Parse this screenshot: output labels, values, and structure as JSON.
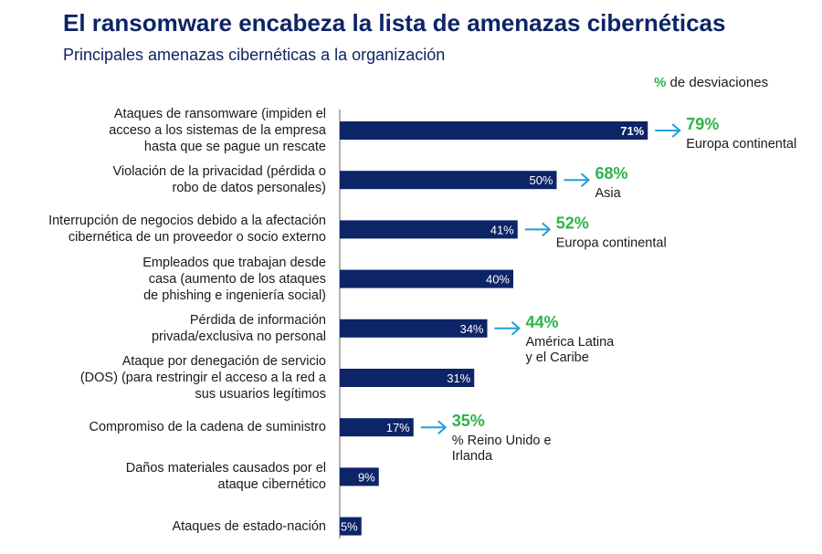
{
  "header": {
    "title": "El ransomware encabeza la lista de amenazas cibernéticas",
    "subtitle": "Principales amenazas cibernéticas a la organización"
  },
  "legend": {
    "symbol": "%",
    "label": " de desviaciones"
  },
  "colors": {
    "bar": "#0d2466",
    "highlight": "#2db34a",
    "arrow": "#1fa0d8"
  },
  "chart_data": {
    "type": "bar",
    "orientation": "horizontal",
    "xlim": [
      0,
      80
    ],
    "grid": false,
    "title": "El ransomware encabeza la lista de amenazas cibernéticas",
    "subtitle": "Principales amenazas cibernéticas a la organización",
    "categories": [
      "Ataques de ransomware (impiden el acceso a los sistemas de la empresa hasta que se pague un rescate",
      "Violación de la privacidad (pérdida o robo de datos personales)",
      "Interrupción de negocios debido a la afectación cibernética de un proveedor o socio externo",
      "Empleados que trabajan desde casa (aumento de los ataques de phishing e ingeniería social)",
      "Pérdida de información privada/exclusiva no personal",
      "Ataque por denegación de servicio (DOS) (para restringir el acceso a la red a sus usuarios legítimos",
      "Compromiso de la cadena de suministro",
      "Daños materiales causados por el ataque cibernético",
      "Ataques de estado-nación"
    ],
    "category_lines": [
      [
        "Ataques de ransomware (impiden el",
        "acceso a los sistemas de la empresa",
        "hasta que se pague un rescate"
      ],
      [
        "Violación de la privacidad (pérdida o",
        "robo de datos personales)"
      ],
      [
        "Interrupción de negocios debido a la afectación",
        "cibernética de un proveedor o socio externo"
      ],
      [
        "Empleados que trabajan desde",
        "casa (aumento de los ataques",
        "de phishing e ingeniería social)"
      ],
      [
        "Pérdida de información",
        "privada/exclusiva no personal"
      ],
      [
        "Ataque por denegación de servicio",
        "(DOS) (para restringir el acceso a la red a",
        "sus usuarios legítimos"
      ],
      [
        "Compromiso de la cadena de suministro"
      ],
      [
        "Daños materiales causados por el",
        "ataque cibernético"
      ],
      [
        "Ataques de estado-nación"
      ]
    ],
    "values": [
      71,
      50,
      41,
      40,
      34,
      31,
      17,
      9,
      5
    ],
    "value_labels": [
      "71%",
      "50%",
      "41%",
      "40%",
      "34%",
      "31%",
      "17%",
      "9%",
      "5%"
    ],
    "deviations": [
      {
        "index": 0,
        "value": "79%",
        "region": [
          "Europa continental"
        ]
      },
      {
        "index": 1,
        "value": "68%",
        "region": [
          "Asia"
        ]
      },
      {
        "index": 2,
        "value": "52%",
        "region": [
          "Europa continental"
        ]
      },
      {
        "index": 4,
        "value": "44%",
        "region": [
          "América Latina",
          "y el Caribe"
        ]
      },
      {
        "index": 6,
        "value": "35%",
        "region": [
          "% Reino Unido e",
          "Irlanda"
        ]
      }
    ]
  }
}
